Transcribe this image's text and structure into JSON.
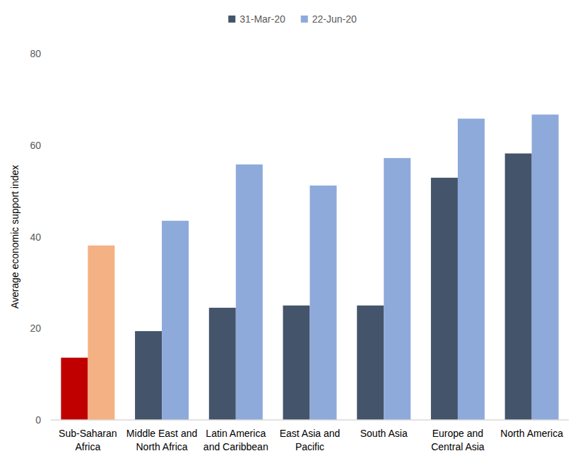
{
  "chart_data": {
    "type": "bar",
    "y_label": "Average economic support index",
    "categories": [
      "Sub-Saharan Africa",
      "Middle East and North Africa",
      "Latin America and Caribbean",
      "East Asia and Pacific",
      "South Asia",
      "Europe and Central Asia",
      "North America"
    ],
    "series": [
      {
        "name": "31-Mar-20",
        "color": "#44546a",
        "colors": [
          "#c00000",
          "#44546a",
          "#44546a",
          "#44546a",
          "#44546a",
          "#44546a",
          "#44546a"
        ],
        "values": [
          13.6,
          19.4,
          24.5,
          25.0,
          25.0,
          52.9,
          58.2
        ]
      },
      {
        "name": "22-Jun-20",
        "color": "#8eaadb",
        "colors": [
          "#f4b183",
          "#8eaadb",
          "#8eaadb",
          "#8eaadb",
          "#8eaadb",
          "#8eaadb",
          "#8eaadb"
        ],
        "values": [
          38.1,
          43.5,
          55.8,
          51.2,
          57.2,
          65.8,
          66.7
        ]
      }
    ],
    "ylim": [
      0,
      80
    ],
    "yticks": [
      0,
      20,
      40,
      60,
      80
    ],
    "grid": false,
    "legend": "top"
  }
}
